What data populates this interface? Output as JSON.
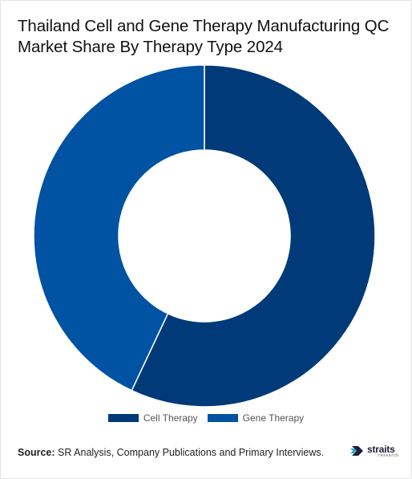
{
  "title": "Thailand Cell and Gene Therapy Manufacturing QC Market Share By Therapy Type 2024",
  "chart_data": {
    "type": "pie",
    "subtype": "donut",
    "title": "Thailand Cell and Gene Therapy Manufacturing QC Market Share By Therapy Type 2024",
    "categories": [
      "Cell Therapy",
      "Gene Therapy"
    ],
    "values": [
      57,
      43
    ],
    "colors": [
      "#003a78",
      "#0052a3"
    ],
    "start_angle_deg": 0,
    "direction": "clockwise",
    "legend_position": "bottom"
  },
  "legend": [
    {
      "label": "Cell Therapy",
      "color": "#003a78"
    },
    {
      "label": "Gene Therapy",
      "color": "#0052a3"
    }
  ],
  "source": {
    "label": "Source:",
    "text": " SR Analysis, Company Publications and Primary Interviews."
  },
  "logo": {
    "word": "straits",
    "sub": "research",
    "icon": "straits-logo-icon"
  }
}
